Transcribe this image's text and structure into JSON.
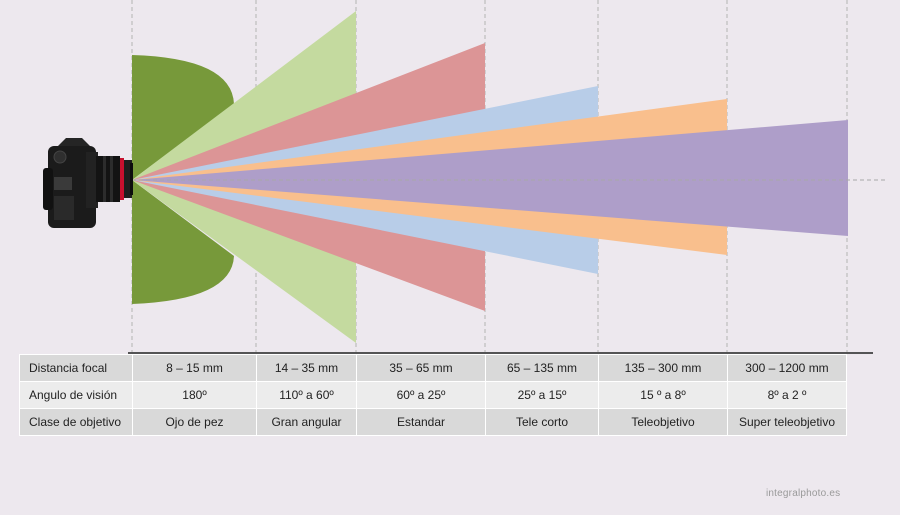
{
  "table": {
    "rows": [
      {
        "header": "Distancia focal",
        "cells": [
          "8 – 15 mm",
          "14 – 35 mm",
          "35 – 65 mm",
          "65 – 135 mm",
          "135 – 300 mm",
          "300 – 1200 mm"
        ]
      },
      {
        "header": "Angulo de visión",
        "cells": [
          "180º",
          "110º a 60º",
          "60º a 25º",
          "25º a 15º",
          "15 º a 8º",
          "8º a 2 º"
        ]
      },
      {
        "header": "Clase de objetivo",
        "cells": [
          "Ojo de pez",
          "Gran angular",
          "Estandar",
          "Tele corto",
          "Teleobjetivo",
          "Super teleobjetivo"
        ]
      }
    ]
  },
  "lens_types": [
    {
      "name": "Ojo de pez",
      "angle_of_view_deg": 180,
      "color": "#77993a"
    },
    {
      "name": "Gran angular",
      "angle_of_view_deg": 110,
      "color": "#c4da9f"
    },
    {
      "name": "Estandar",
      "angle_of_view_deg": 60,
      "color": "#dc9596"
    },
    {
      "name": "Tele corto",
      "angle_of_view_deg": 25,
      "color": "#b8cde8"
    },
    {
      "name": "Teleobjetivo",
      "angle_of_view_deg": 15,
      "color": "#f9bf8d"
    },
    {
      "name": "Super teleobjetivo",
      "angle_of_view_deg": 8,
      "color": "#ae9ec9"
    }
  ],
  "colors": {
    "background": "#ede8ee",
    "guide_line": "#b3b3b3",
    "table_dark": "#d9d9d9",
    "table_light": "#ececec"
  },
  "icons": {
    "camera": "dslr-camera-icon"
  },
  "watermark": "integralphoto.es"
}
